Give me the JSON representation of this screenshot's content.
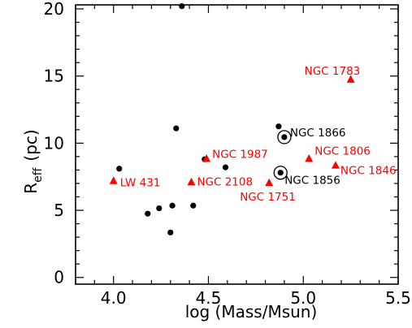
{
  "chart_data": {
    "type": "scatter",
    "title": "",
    "xlabel": "log (Mass/Msun)",
    "ylabel_main": "R",
    "ylabel_sub": "eff",
    "ylabel_unit": "(pc)",
    "xlim": [
      3.8,
      5.5
    ],
    "ylim": [
      -0.5,
      20.3
    ],
    "xticks": [
      4.0,
      4.5,
      5.0,
      5.5
    ],
    "xtick_labels": [
      "4.0",
      "4.5",
      "5.0",
      "5.5"
    ],
    "yticks": [
      0,
      5,
      10,
      15,
      20
    ],
    "ytick_labels": [
      "0",
      "5",
      "10",
      "15",
      "20"
    ],
    "grid": false,
    "colors": {
      "black_points": "#000000",
      "red_points": "#ff0000",
      "axes": "#000000"
    },
    "series": [
      {
        "marker": "circle",
        "color": "#000000",
        "points": [
          {
            "x": 4.03,
            "y": 8.1
          },
          {
            "x": 4.18,
            "y": 4.75
          },
          {
            "x": 4.24,
            "y": 5.15
          },
          {
            "x": 4.3,
            "y": 3.35
          },
          {
            "x": 4.31,
            "y": 5.35
          },
          {
            "x": 4.33,
            "y": 11.1
          },
          {
            "x": 4.36,
            "y": 20.2
          },
          {
            "x": 4.42,
            "y": 5.35
          },
          {
            "x": 4.48,
            "y": 8.8
          },
          {
            "x": 4.59,
            "y": 8.2
          },
          {
            "x": 4.87,
            "y": 11.25
          },
          {
            "x": 4.9,
            "y": 10.45,
            "label": "NGC 1866",
            "circled": true,
            "label_dx": 7,
            "label_dy": -5
          },
          {
            "x": 4.88,
            "y": 7.8,
            "label": "NGC 1856",
            "circled": true,
            "label_dx": 5,
            "label_dy": 10
          }
        ]
      },
      {
        "marker": "triangle",
        "color": "#ff0000",
        "points": [
          {
            "x": 4.0,
            "y": 7.2,
            "label": "LW 431",
            "label_dx": 8,
            "label_dy": 3
          },
          {
            "x": 4.41,
            "y": 7.1,
            "label": "NGC 2108",
            "label_dx": 7,
            "label_dy": 0
          },
          {
            "x": 4.49,
            "y": 8.85,
            "label": "NGC 1987",
            "label_dx": 7,
            "label_dy": -5
          },
          {
            "x": 4.82,
            "y": 7.05,
            "label": "NGC 1751",
            "label_dx": -36,
            "label_dy": 18
          },
          {
            "x": 5.03,
            "y": 8.85,
            "label": "NGC 1806",
            "label_dx": 7,
            "label_dy": -9
          },
          {
            "x": 5.17,
            "y": 8.35,
            "label": "NGC 1846",
            "label_dx": 6,
            "label_dy": 7
          },
          {
            "x": 5.25,
            "y": 14.75,
            "label": "NGC 1783",
            "label_dx": -57,
            "label_dy": -10
          }
        ]
      }
    ]
  }
}
